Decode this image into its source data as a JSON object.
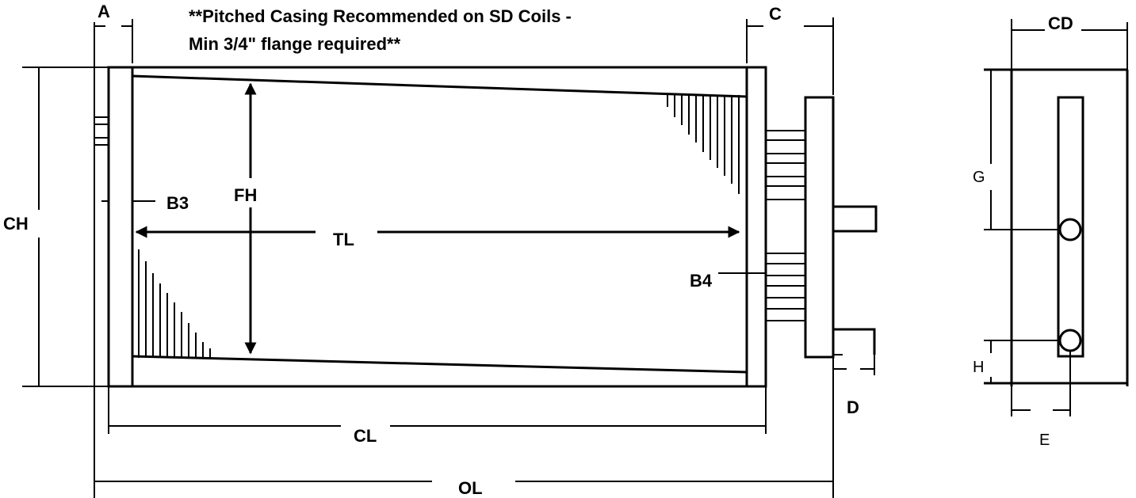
{
  "note": {
    "line1": "**Pitched Casing Recommended on SD Coils -",
    "line2": "Min 3/4\" flange required**"
  },
  "labels": {
    "A": "A",
    "C": "C",
    "CD": "CD",
    "CH": "CH",
    "FH": "FH",
    "B3": "B3",
    "TL": "TL",
    "B4": "B4",
    "CL": "CL",
    "OL": "OL",
    "D": "D",
    "G": "G",
    "H": "H",
    "E": "E"
  },
  "colors": {
    "line": "#000000",
    "background": "#ffffff"
  }
}
